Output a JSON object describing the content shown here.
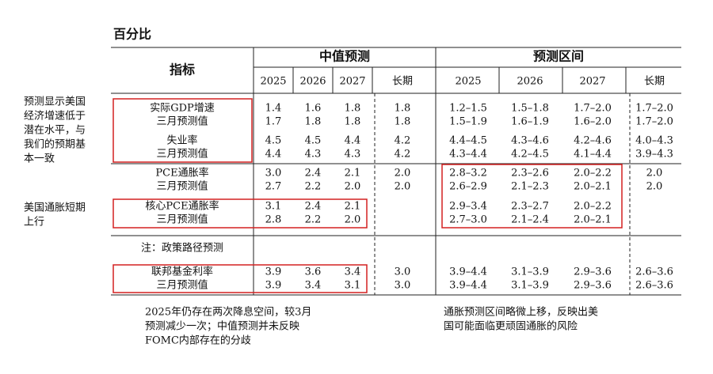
{
  "header": {
    "title": "百分比"
  },
  "table": {
    "label_header": "指标",
    "median_header": "中值预测",
    "range_header": "预测区间",
    "years": [
      "2025",
      "2026",
      "2027",
      "长期"
    ],
    "rows": [
      {
        "label": "实际GDP增速",
        "median": [
          "1.4",
          "1.6",
          "1.8",
          "1.8"
        ],
        "range": [
          "1.2–1.5",
          "1.5–1.8",
          "1.7–2.0",
          "1.7–2.0"
        ]
      },
      {
        "label": "三月预测值",
        "median": [
          "1.7",
          "1.8",
          "1.8",
          "1.8"
        ],
        "range": [
          "1.5–1.9",
          "1.6–1.9",
          "1.6–2.0",
          "1.7–2.0"
        ]
      },
      {
        "label": "失业率",
        "median": [
          "4.5",
          "4.5",
          "4.4",
          "4.2"
        ],
        "range": [
          "4.4–4.5",
          "4.3–4.6",
          "4.2–4.6",
          "4.0–4.3"
        ]
      },
      {
        "label": "三月预测值",
        "median": [
          "4.4",
          "4.3",
          "4.3",
          "4.2"
        ],
        "range": [
          "4.3–4.4",
          "4.2–4.5",
          "4.1–4.4",
          "3.9–4.3"
        ]
      },
      {
        "label": "PCE通胀率",
        "median": [
          "3.0",
          "2.4",
          "2.1",
          "2.0"
        ],
        "range": [
          "2.8–3.2",
          "2.3–2.6",
          "2.0–2.2",
          "2.0"
        ]
      },
      {
        "label": "三月预测值",
        "median": [
          "2.7",
          "2.2",
          "2.0",
          "2.0"
        ],
        "range": [
          "2.6–2.9",
          "2.1–2.3",
          "2.0–2.1",
          "2.0"
        ]
      },
      {
        "label": "核心PCE通胀率",
        "median": [
          "3.1",
          "2.4",
          "2.1",
          null
        ],
        "range": [
          "2.9–3.4",
          "2.3–2.7",
          "2.0–2.2",
          null
        ]
      },
      {
        "label": "三月预测值",
        "median": [
          "2.8",
          "2.2",
          "2.0",
          null
        ],
        "range": [
          "2.7–3.0",
          "2.1–2.4",
          "2.0–2.1",
          null
        ]
      }
    ],
    "note": "注：政策路径预测",
    "policy_rows": [
      {
        "label": "联邦基金利率",
        "median": [
          "3.9",
          "3.6",
          "3.4",
          "3.0"
        ],
        "range": [
          "3.9–4.4",
          "3.1–3.9",
          "2.9–3.6",
          "2.6–3.6"
        ]
      },
      {
        "label": "三月预测值",
        "median": [
          "3.9",
          "3.4",
          "3.1",
          "3.0"
        ],
        "range": [
          "3.9–4.4",
          "3.1–3.9",
          "2.9–3.6",
          "2.6–3.6"
        ]
      }
    ]
  },
  "annotations": {
    "growth": [
      "预测显示美国",
      "经济增速低于",
      "潜在水平，与",
      "我们的预期基",
      "本一致"
    ],
    "inflation": [
      "美国通胀短期",
      "上行"
    ],
    "rates": [
      "2025年仍存在两次降息空间，较3月",
      "预测减少一次；中值预测并未反映",
      "FOMC内部存在的分歧"
    ],
    "range": [
      "通胀预测区间略微上移，反映出美",
      "国可能面临更顽固通胀的风险"
    ]
  }
}
